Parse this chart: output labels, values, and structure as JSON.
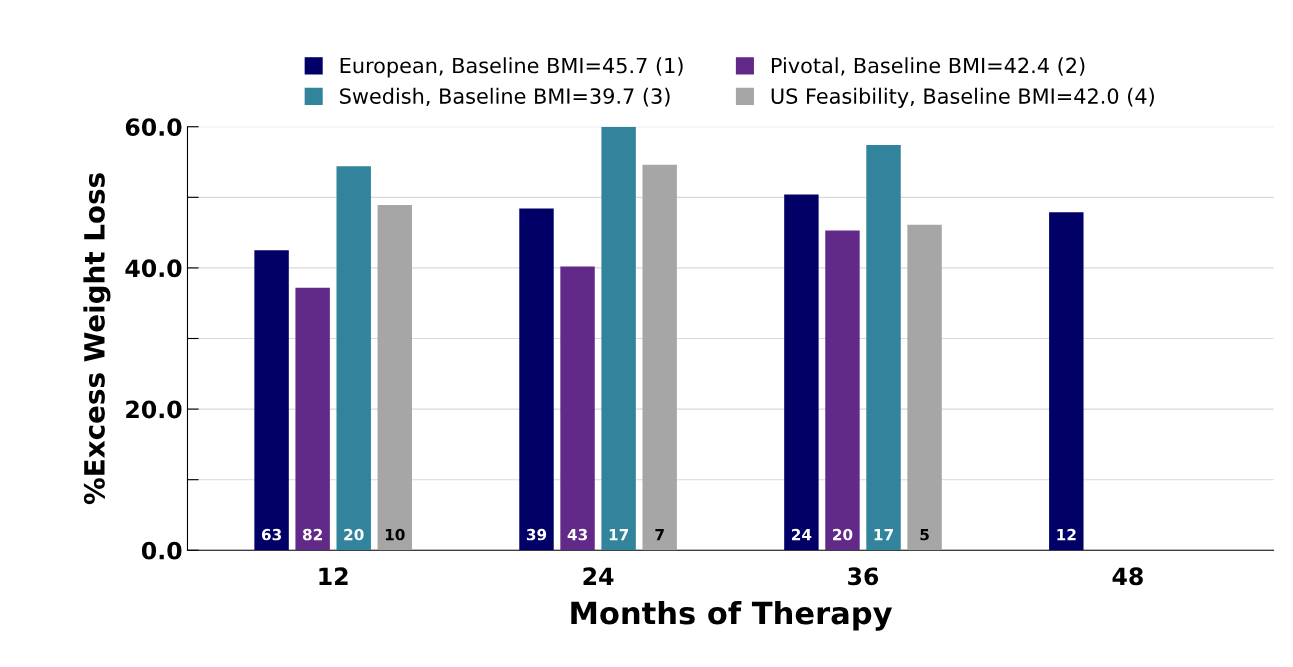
{
  "chart_data": {
    "type": "bar",
    "xlabel": "Months of Therapy",
    "ylabel": "%Excess Weight Loss",
    "categories": [
      "12",
      "24",
      "36",
      "48"
    ],
    "series": [
      {
        "name": "European, Baseline BMI=45.7 (1)",
        "color": "#000066",
        "values": [
          42.5,
          48.4,
          50.4,
          47.9
        ]
      },
      {
        "name": "Pivotal, Baseline BMI=42.4 (2)",
        "color": "#622a88",
        "values": [
          37.2,
          40.2,
          45.3,
          null
        ]
      },
      {
        "name": "Swedish, Baseline BMI=39.7 (3)",
        "color": "#31849b",
        "values": [
          54.4,
          60.0,
          57.4,
          null
        ]
      },
      {
        "name": "US Feasibility, Baseline BMI=42.0 (4)",
        "color": "#a6a6a6",
        "values": [
          48.9,
          54.6,
          46.1,
          null
        ]
      }
    ],
    "annotations": [
      "63",
      "82",
      "20",
      "10",
      "39",
      "43",
      "17",
      "7",
      "24",
      "20",
      "17",
      "5",
      "12"
    ],
    "ylim": [
      0,
      60
    ],
    "yticks": [
      {
        "value": 0,
        "label": "0.0"
      },
      {
        "value": 10,
        "label": null
      },
      {
        "value": 20,
        "label": "20.0"
      },
      {
        "value": 30,
        "label": null
      },
      {
        "value": 40,
        "label": "40.0"
      },
      {
        "value": 50,
        "label": null
      },
      {
        "value": 60,
        "label": "60.0"
      }
    ],
    "grid": "y",
    "legend": "top"
  }
}
